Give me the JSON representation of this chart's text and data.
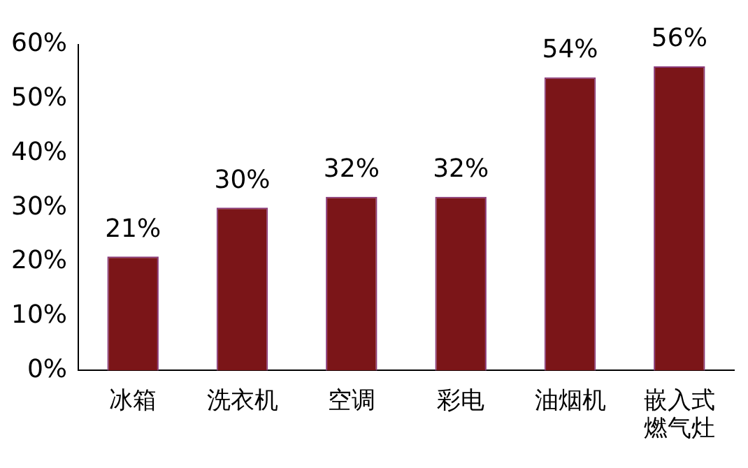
{
  "chart_data": {
    "type": "bar",
    "categories": [
      "冰箱",
      "洗衣机",
      "空调",
      "彩电",
      "油烟机",
      "嵌入式燃气灶"
    ],
    "values": [
      21,
      30,
      32,
      32,
      54,
      56
    ],
    "value_labels": [
      "21%",
      "30%",
      "32%",
      "32%",
      "54%",
      "56%"
    ],
    "color": "#7b1518",
    "ylim": [
      0,
      60
    ],
    "yticks": [
      {
        "value": 0,
        "label": "0%"
      },
      {
        "value": 10,
        "label": "10%"
      },
      {
        "value": 20,
        "label": "20%"
      },
      {
        "value": 30,
        "label": "30%"
      },
      {
        "value": 40,
        "label": "40%"
      },
      {
        "value": 50,
        "label": "50%"
      },
      {
        "value": 60,
        "label": "60%"
      }
    ],
    "grid": false,
    "legend": false
  }
}
